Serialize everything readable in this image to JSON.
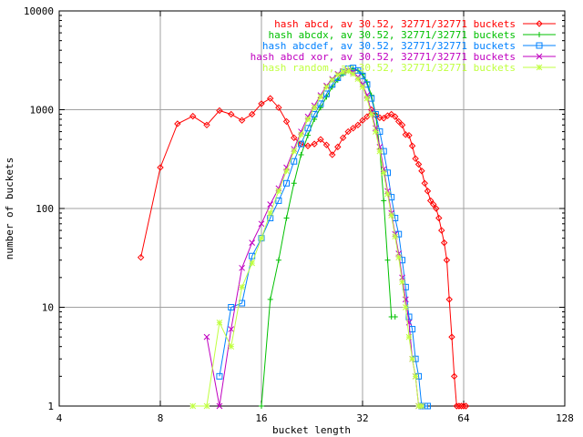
{
  "chart_data": {
    "type": "line",
    "title": "",
    "xlabel": "bucket length",
    "ylabel": "number of buckets",
    "x_scale": "log2",
    "y_scale": "log10",
    "xlim": [
      4,
      128
    ],
    "ylim": [
      1,
      10000
    ],
    "x_ticks": [
      4,
      8,
      16,
      32,
      64,
      128
    ],
    "x_tick_labels": [
      "4",
      "8",
      "16",
      "32",
      "64",
      "128"
    ],
    "y_ticks": [
      1,
      10,
      100,
      1000,
      10000
    ],
    "y_tick_labels": [
      "1",
      "10",
      "100",
      "1000",
      "10000"
    ],
    "grid": true,
    "legend_position": "top-right",
    "series": [
      {
        "name": "hash abcd, av 30.52, 32771/32771 buckets",
        "color": "#ff0000",
        "marker": "diamond",
        "x": [
          7,
          8,
          9,
          10,
          11,
          12,
          13,
          14,
          15,
          16,
          17,
          18,
          19,
          20,
          21,
          22,
          23,
          24,
          25,
          26,
          27,
          28,
          29,
          30,
          31,
          32,
          33,
          34,
          35,
          36,
          37,
          38,
          39,
          40,
          41,
          42,
          43,
          44,
          45,
          46,
          47,
          48,
          49,
          50,
          51,
          52,
          53,
          54,
          55,
          56,
          57,
          58,
          59,
          60,
          61,
          62,
          63,
          64,
          65
        ],
        "y": [
          32,
          260,
          720,
          860,
          700,
          980,
          900,
          780,
          900,
          1150,
          1300,
          1050,
          760,
          520,
          450,
          430,
          450,
          500,
          440,
          350,
          420,
          520,
          600,
          650,
          700,
          780,
          850,
          1000,
          880,
          830,
          820,
          870,
          900,
          850,
          760,
          700,
          560,
          550,
          430,
          320,
          280,
          240,
          180,
          150,
          120,
          110,
          100,
          80,
          60,
          45,
          30,
          12,
          5,
          2,
          1,
          1,
          1,
          1,
          1
        ]
      },
      {
        "name": "hash abcdx, av 30.52, 32771/32771 buckets",
        "color": "#00c000",
        "marker": "plus",
        "x": [
          16,
          17,
          18,
          19,
          20,
          21,
          22,
          23,
          24,
          25,
          26,
          27,
          28,
          29,
          30,
          31,
          32,
          33,
          34,
          35,
          36,
          37,
          38,
          39,
          40
        ],
        "y": [
          1,
          12,
          30,
          80,
          180,
          350,
          550,
          800,
          1050,
          1350,
          1700,
          2000,
          2300,
          2500,
          2600,
          2500,
          2300,
          1900,
          1400,
          900,
          400,
          120,
          30,
          8,
          8
        ]
      },
      {
        "name": "hash abcdef, av 30.52, 32771/32771 buckets",
        "color": "#0080ff",
        "marker": "square",
        "x": [
          12,
          13,
          14,
          15,
          16,
          17,
          18,
          19,
          20,
          21,
          22,
          23,
          24,
          25,
          26,
          27,
          28,
          29,
          30,
          31,
          32,
          33,
          34,
          35,
          36,
          37,
          38,
          39,
          40,
          41,
          42,
          43,
          44,
          45,
          46,
          47,
          48,
          49,
          50
        ],
        "y": [
          2,
          10,
          11,
          33,
          50,
          80,
          120,
          180,
          300,
          450,
          650,
          900,
          1150,
          1450,
          1800,
          2100,
          2400,
          2600,
          2650,
          2500,
          2200,
          1800,
          1300,
          900,
          600,
          380,
          230,
          130,
          80,
          55,
          30,
          16,
          8,
          6,
          3,
          2,
          1,
          1,
          1
        ]
      },
      {
        "name": "hash abcd xor, av 30.52, 32771/32771 buckets",
        "color": "#c000c0",
        "marker": "x",
        "x": [
          11,
          12,
          13,
          14,
          15,
          16,
          17,
          18,
          19,
          20,
          21,
          22,
          23,
          24,
          25,
          26,
          27,
          28,
          29,
          30,
          31,
          32,
          33,
          34,
          35,
          36,
          37,
          38,
          39,
          40,
          41,
          42,
          43,
          44,
          45,
          46,
          47,
          48
        ],
        "y": [
          5,
          1,
          6,
          25,
          45,
          70,
          110,
          160,
          260,
          400,
          600,
          850,
          1100,
          1400,
          1750,
          2050,
          2300,
          2450,
          2500,
          2400,
          2150,
          1800,
          1400,
          950,
          650,
          420,
          250,
          150,
          90,
          55,
          35,
          20,
          12,
          7,
          3,
          2,
          1,
          1
        ]
      },
      {
        "name": "hash random, av 30.52, 32771/32771 buckets",
        "color": "#c0ff40",
        "marker": "star",
        "x": [
          10,
          11,
          12,
          13,
          14,
          15,
          16,
          17,
          18,
          19,
          20,
          21,
          22,
          23,
          24,
          25,
          26,
          27,
          28,
          29,
          30,
          31,
          32,
          33,
          34,
          35,
          36,
          37,
          38,
          39,
          40,
          41,
          42,
          43,
          44,
          45,
          46,
          47,
          48
        ],
        "y": [
          1,
          1,
          7,
          4,
          16,
          28,
          50,
          90,
          150,
          240,
          380,
          560,
          800,
          1050,
          1350,
          1700,
          2000,
          2250,
          2400,
          2450,
          2300,
          2050,
          1700,
          1300,
          900,
          600,
          380,
          230,
          140,
          85,
          52,
          32,
          18,
          10,
          5,
          3,
          2,
          1,
          1
        ]
      }
    ]
  }
}
